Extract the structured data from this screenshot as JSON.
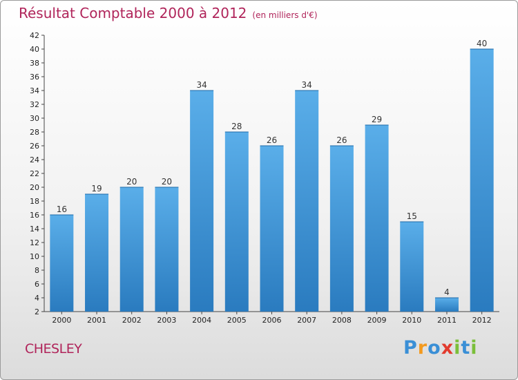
{
  "title": "Résultat Comptable 2000 à 2012",
  "unit": "(en milliers d'€)",
  "commune": "CHESLEY",
  "logo": {
    "letters": [
      "P",
      "r",
      "o",
      "x",
      "i",
      "t",
      "i"
    ],
    "colors": [
      "#3a8fd6",
      "#f39a1f",
      "#3a8fd6",
      "#e23b2e",
      "#7bbf3a",
      "#3a8fd6",
      "#7bbf3a"
    ]
  },
  "colors": {
    "bar": "#3d96dc",
    "title": "#b0245a"
  },
  "chart_data": {
    "type": "bar",
    "title": "Résultat Comptable 2000 à 2012",
    "subtitle": "(en milliers d'€)",
    "xlabel": "",
    "ylabel": "",
    "categories": [
      "2000",
      "2001",
      "2002",
      "2003",
      "2004",
      "2005",
      "2006",
      "2007",
      "2008",
      "2009",
      "2010",
      "2011",
      "2012"
    ],
    "values": [
      16,
      19,
      20,
      20,
      34,
      28,
      26,
      34,
      26,
      29,
      15,
      4,
      40
    ],
    "ylim": [
      2,
      42
    ],
    "yticks": [
      2,
      4,
      6,
      8,
      10,
      12,
      14,
      16,
      18,
      20,
      22,
      24,
      26,
      28,
      30,
      32,
      34,
      36,
      38,
      40,
      42
    ],
    "grid": false
  }
}
